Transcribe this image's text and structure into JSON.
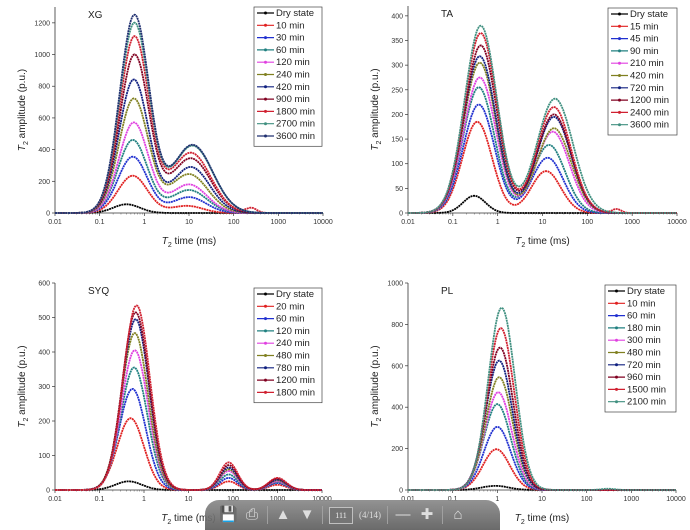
{
  "chart_data": [
    {
      "type": "line",
      "title": "XG",
      "xlabel_var": "T",
      "xlabel_sub": "2",
      "xlabel_rest": " time (ms)",
      "ylabel_var": "T",
      "ylabel_sub": "2",
      "ylabel_rest": " amplitude (p.u.)",
      "x_scale": "log",
      "xlim": [
        0.01,
        10000
      ],
      "ylim": [
        0,
        1300
      ],
      "x_ticks": [
        "0.01",
        "0.1",
        "1",
        "10",
        "100",
        "1000",
        "10000"
      ],
      "y_ticks": [
        0,
        200,
        400,
        600,
        800,
        1000,
        1200
      ],
      "legend_position": "top-right",
      "grid": false,
      "series": [
        {
          "name": "Dry state",
          "color": "#000000",
          "peaks": [
            {
              "t2_ms": 0.4,
              "amplitude": 55,
              "sigma_decades": 0.3
            }
          ]
        },
        {
          "name": "10 min",
          "color": "#e02020",
          "peaks": [
            {
              "t2_ms": 0.55,
              "amplitude": 235,
              "sigma_decades": 0.33
            },
            {
              "t2_ms": 9,
              "amplitude": 45,
              "sigma_decades": 0.35
            }
          ]
        },
        {
          "name": "30 min",
          "color": "#2030d0",
          "peaks": [
            {
              "t2_ms": 0.55,
              "amplitude": 355,
              "sigma_decades": 0.33
            },
            {
              "t2_ms": 10,
              "amplitude": 100,
              "sigma_decades": 0.38
            }
          ]
        },
        {
          "name": "60 min",
          "color": "#208080",
          "peaks": [
            {
              "t2_ms": 0.55,
              "amplitude": 460,
              "sigma_decades": 0.33
            },
            {
              "t2_ms": 10,
              "amplitude": 145,
              "sigma_decades": 0.4
            }
          ]
        },
        {
          "name": "120 min",
          "color": "#e040e0",
          "peaks": [
            {
              "t2_ms": 0.58,
              "amplitude": 570,
              "sigma_decades": 0.33
            },
            {
              "t2_ms": 10,
              "amplitude": 180,
              "sigma_decades": 0.4
            }
          ]
        },
        {
          "name": "240 min",
          "color": "#808020",
          "peaks": [
            {
              "t2_ms": 0.58,
              "amplitude": 720,
              "sigma_decades": 0.33
            },
            {
              "t2_ms": 10,
              "amplitude": 245,
              "sigma_decades": 0.42
            }
          ]
        },
        {
          "name": "420 min",
          "color": "#102080",
          "peaks": [
            {
              "t2_ms": 0.58,
              "amplitude": 840,
              "sigma_decades": 0.33
            },
            {
              "t2_ms": 11,
              "amplitude": 290,
              "sigma_decades": 0.42
            }
          ]
        },
        {
          "name": "900 min",
          "color": "#800020",
          "peaks": [
            {
              "t2_ms": 0.6,
              "amplitude": 995,
              "sigma_decades": 0.33
            },
            {
              "t2_ms": 11,
              "amplitude": 345,
              "sigma_decades": 0.44
            }
          ]
        },
        {
          "name": "1800 min",
          "color": "#d02030",
          "peaks": [
            {
              "t2_ms": 0.6,
              "amplitude": 1110,
              "sigma_decades": 0.33
            },
            {
              "t2_ms": 11,
              "amplitude": 380,
              "sigma_decades": 0.44
            },
            {
              "t2_ms": 250,
              "amplitude": 30,
              "sigma_decades": 0.12
            }
          ]
        },
        {
          "name": "2700 min",
          "color": "#409080",
          "peaks": [
            {
              "t2_ms": 0.6,
              "amplitude": 1195,
              "sigma_decades": 0.33
            },
            {
              "t2_ms": 12,
              "amplitude": 425,
              "sigma_decades": 0.45
            }
          ]
        },
        {
          "name": "3600 min",
          "color": "#203070",
          "peaks": [
            {
              "t2_ms": 0.6,
              "amplitude": 1245,
              "sigma_decades": 0.33
            },
            {
              "t2_ms": 12,
              "amplitude": 430,
              "sigma_decades": 0.45
            }
          ]
        }
      ]
    },
    {
      "type": "line",
      "title": "TA",
      "xlabel_var": "T",
      "xlabel_sub": "2",
      "xlabel_rest": " time (ms)",
      "ylabel_var": "T",
      "ylabel_sub": "2",
      "ylabel_rest": " amplitude (p.u.)",
      "x_scale": "log",
      "xlim": [
        0.01,
        10000
      ],
      "ylim": [
        0,
        420
      ],
      "x_ticks": [
        "0.01",
        "0.1",
        "1",
        "10",
        "100",
        "1000",
        "10000"
      ],
      "y_ticks": [
        0,
        50,
        100,
        150,
        200,
        250,
        300,
        350,
        400
      ],
      "legend_position": "top-right",
      "grid": false,
      "series": [
        {
          "name": "Dry state",
          "color": "#000000",
          "peaks": [
            {
              "t2_ms": 0.3,
              "amplitude": 35,
              "sigma_decades": 0.25
            }
          ]
        },
        {
          "name": "15 min",
          "color": "#e02020",
          "peaks": [
            {
              "t2_ms": 0.35,
              "amplitude": 185,
              "sigma_decades": 0.33
            },
            {
              "t2_ms": 12,
              "amplitude": 85,
              "sigma_decades": 0.33
            }
          ]
        },
        {
          "name": "45 min",
          "color": "#2030d0",
          "peaks": [
            {
              "t2_ms": 0.38,
              "amplitude": 220,
              "sigma_decades": 0.35
            },
            {
              "t2_ms": 13,
              "amplitude": 112,
              "sigma_decades": 0.35
            }
          ]
        },
        {
          "name": "90 min",
          "color": "#208080",
          "peaks": [
            {
              "t2_ms": 0.38,
              "amplitude": 255,
              "sigma_decades": 0.35
            },
            {
              "t2_ms": 14,
              "amplitude": 138,
              "sigma_decades": 0.36
            }
          ]
        },
        {
          "name": "210 min",
          "color": "#e040e0",
          "peaks": [
            {
              "t2_ms": 0.4,
              "amplitude": 275,
              "sigma_decades": 0.36
            },
            {
              "t2_ms": 17,
              "amplitude": 165,
              "sigma_decades": 0.37
            }
          ]
        },
        {
          "name": "420 min",
          "color": "#808020",
          "peaks": [
            {
              "t2_ms": 0.4,
              "amplitude": 305,
              "sigma_decades": 0.36
            },
            {
              "t2_ms": 18,
              "amplitude": 172,
              "sigma_decades": 0.38
            }
          ]
        },
        {
          "name": "720 min",
          "color": "#102080",
          "peaks": [
            {
              "t2_ms": 0.4,
              "amplitude": 318,
              "sigma_decades": 0.36
            },
            {
              "t2_ms": 18,
              "amplitude": 195,
              "sigma_decades": 0.38
            }
          ]
        },
        {
          "name": "1200 min",
          "color": "#800020",
          "peaks": [
            {
              "t2_ms": 0.42,
              "amplitude": 340,
              "sigma_decades": 0.36
            },
            {
              "t2_ms": 18,
              "amplitude": 200,
              "sigma_decades": 0.38
            }
          ]
        },
        {
          "name": "2400 min",
          "color": "#d02030",
          "peaks": [
            {
              "t2_ms": 0.42,
              "amplitude": 365,
              "sigma_decades": 0.36
            },
            {
              "t2_ms": 18,
              "amplitude": 215,
              "sigma_decades": 0.38
            },
            {
              "t2_ms": 450,
              "amplitude": 8,
              "sigma_decades": 0.1
            }
          ]
        },
        {
          "name": "3600 min",
          "color": "#409080",
          "peaks": [
            {
              "t2_ms": 0.42,
              "amplitude": 380,
              "sigma_decades": 0.36
            },
            {
              "t2_ms": 19,
              "amplitude": 232,
              "sigma_decades": 0.4
            }
          ]
        }
      ]
    },
    {
      "type": "line",
      "title": "SYQ",
      "xlabel_var": "T",
      "xlabel_sub": "2",
      "xlabel_rest": " time (ms)",
      "ylabel_var": "T",
      "ylabel_sub": "2",
      "ylabel_rest": " amplitude (p.u.)",
      "x_scale": "log",
      "xlim": [
        0.01,
        10000
      ],
      "ylim": [
        0,
        600
      ],
      "x_ticks": [
        "0.01",
        "0.1",
        "1",
        "10",
        "100",
        "1000",
        "10000"
      ],
      "y_ticks": [
        0,
        100,
        200,
        300,
        400,
        500,
        600
      ],
      "legend_position": "top-right",
      "grid": false,
      "series": [
        {
          "name": "Dry state",
          "color": "#000000",
          "peaks": [
            {
              "t2_ms": 0.45,
              "amplitude": 25,
              "sigma_decades": 0.3
            }
          ]
        },
        {
          "name": "20 min",
          "color": "#e02020",
          "peaks": [
            {
              "t2_ms": 0.5,
              "amplitude": 208,
              "sigma_decades": 0.3
            },
            {
              "t2_ms": 80,
              "amplitude": 25,
              "sigma_decades": 0.2
            },
            {
              "t2_ms": 1000,
              "amplitude": 15,
              "sigma_decades": 0.2
            }
          ]
        },
        {
          "name": "60 min",
          "color": "#2030d0",
          "peaks": [
            {
              "t2_ms": 0.55,
              "amplitude": 293,
              "sigma_decades": 0.3
            },
            {
              "t2_ms": 80,
              "amplitude": 35,
              "sigma_decades": 0.2
            },
            {
              "t2_ms": 1000,
              "amplitude": 20,
              "sigma_decades": 0.2
            }
          ]
        },
        {
          "name": "120 min",
          "color": "#208080",
          "peaks": [
            {
              "t2_ms": 0.6,
              "amplitude": 355,
              "sigma_decades": 0.3
            },
            {
              "t2_ms": 80,
              "amplitude": 45,
              "sigma_decades": 0.2
            },
            {
              "t2_ms": 1000,
              "amplitude": 22,
              "sigma_decades": 0.2
            }
          ]
        },
        {
          "name": "240 min",
          "color": "#e040e0",
          "peaks": [
            {
              "t2_ms": 0.62,
              "amplitude": 405,
              "sigma_decades": 0.3
            },
            {
              "t2_ms": 80,
              "amplitude": 55,
              "sigma_decades": 0.2
            },
            {
              "t2_ms": 1000,
              "amplitude": 25,
              "sigma_decades": 0.2
            }
          ]
        },
        {
          "name": "480 min",
          "color": "#808020",
          "peaks": [
            {
              "t2_ms": 0.62,
              "amplitude": 455,
              "sigma_decades": 0.3
            },
            {
              "t2_ms": 80,
              "amplitude": 60,
              "sigma_decades": 0.2
            },
            {
              "t2_ms": 1000,
              "amplitude": 28,
              "sigma_decades": 0.2
            }
          ]
        },
        {
          "name": "780 min",
          "color": "#102080",
          "peaks": [
            {
              "t2_ms": 0.65,
              "amplitude": 495,
              "sigma_decades": 0.3
            },
            {
              "t2_ms": 80,
              "amplitude": 65,
              "sigma_decades": 0.2
            },
            {
              "t2_ms": 1000,
              "amplitude": 30,
              "sigma_decades": 0.2
            }
          ]
        },
        {
          "name": "1200 min",
          "color": "#800020",
          "peaks": [
            {
              "t2_ms": 0.65,
              "amplitude": 515,
              "sigma_decades": 0.3
            },
            {
              "t2_ms": 80,
              "amplitude": 72,
              "sigma_decades": 0.2
            },
            {
              "t2_ms": 1000,
              "amplitude": 33,
              "sigma_decades": 0.2
            }
          ]
        },
        {
          "name": "1800 min",
          "color": "#d02030",
          "peaks": [
            {
              "t2_ms": 0.68,
              "amplitude": 535,
              "sigma_decades": 0.3
            },
            {
              "t2_ms": 80,
              "amplitude": 80,
              "sigma_decades": 0.2
            },
            {
              "t2_ms": 1000,
              "amplitude": 35,
              "sigma_decades": 0.2
            }
          ]
        }
      ]
    },
    {
      "type": "line",
      "title": "PL",
      "xlabel_var": "T",
      "xlabel_sub": "2",
      "xlabel_rest": " time (ms)",
      "ylabel_var": "T",
      "ylabel_sub": "2",
      "ylabel_rest": " amplitude (p.u.)",
      "x_scale": "log",
      "xlim": [
        0.01,
        10000
      ],
      "ylim": [
        0,
        1000
      ],
      "x_ticks": [
        "0.01",
        "0.1",
        "1",
        "10",
        "100",
        "1000",
        "10000"
      ],
      "y_ticks": [
        0,
        200,
        400,
        600,
        800,
        1000
      ],
      "legend_position": "top-right",
      "grid": false,
      "series": [
        {
          "name": "Dry state",
          "color": "#000000",
          "peaks": [
            {
              "t2_ms": 0.9,
              "amplitude": 20,
              "sigma_decades": 0.3
            }
          ]
        },
        {
          "name": "10 min",
          "color": "#e02020",
          "peaks": [
            {
              "t2_ms": 0.95,
              "amplitude": 197,
              "sigma_decades": 0.3
            }
          ]
        },
        {
          "name": "60 min",
          "color": "#2030d0",
          "peaks": [
            {
              "t2_ms": 1.0,
              "amplitude": 305,
              "sigma_decades": 0.3
            }
          ]
        },
        {
          "name": "180 min",
          "color": "#208080",
          "peaks": [
            {
              "t2_ms": 1.0,
              "amplitude": 415,
              "sigma_decades": 0.3
            }
          ]
        },
        {
          "name": "300 min",
          "color": "#e040e0",
          "peaks": [
            {
              "t2_ms": 1.05,
              "amplitude": 472,
              "sigma_decades": 0.3
            }
          ]
        },
        {
          "name": "480 min",
          "color": "#808020",
          "peaks": [
            {
              "t2_ms": 1.1,
              "amplitude": 545,
              "sigma_decades": 0.3
            }
          ]
        },
        {
          "name": "720 min",
          "color": "#102080",
          "peaks": [
            {
              "t2_ms": 1.1,
              "amplitude": 625,
              "sigma_decades": 0.3
            }
          ]
        },
        {
          "name": "960 min",
          "color": "#800020",
          "peaks": [
            {
              "t2_ms": 1.15,
              "amplitude": 688,
              "sigma_decades": 0.3
            }
          ]
        },
        {
          "name": "1500 min",
          "color": "#d02030",
          "peaks": [
            {
              "t2_ms": 1.2,
              "amplitude": 782,
              "sigma_decades": 0.3
            }
          ]
        },
        {
          "name": "2100 min",
          "color": "#409080",
          "peaks": [
            {
              "t2_ms": 1.25,
              "amplitude": 880,
              "sigma_decades": 0.3
            },
            {
              "t2_ms": 300,
              "amplitude": 6,
              "sigma_decades": 0.15
            }
          ]
        }
      ]
    }
  ],
  "toolbar": {
    "save_icon": "save-icon",
    "print_icon": "print-icon",
    "prev_icon": "arrow-up-icon",
    "next_icon": "arrow-down-icon",
    "page_input": "111",
    "page_count": "(4/14)",
    "zoom_out_icon": "minus-icon",
    "zoom_in_icon": "plus-icon",
    "home_icon": "home-icon"
  }
}
